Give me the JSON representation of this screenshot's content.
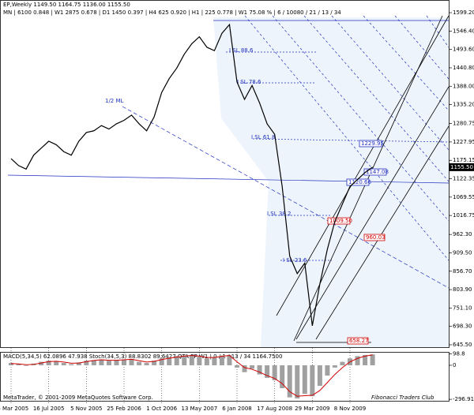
{
  "header": {
    "line1": "EP,Weekly  1149.50 1164.75 1136.00 1155.50",
    "line2": "MN | 6100   0.848 | W1 2875   0.678 | D1 1450   0.397 | H4 625   0.920 | H1 | 225   0.778 | W1   75.08 % | 6 / 10080 / 21 / 13 / 34"
  },
  "footer": {
    "copyright": "MetaTrader, © 2001-2009 MetaQuotes Software Corp.",
    "club": "Fibonacci Traders Club"
  },
  "chart_data": [
    {
      "type": "line",
      "color": "#000000",
      "categories": [
        "26 Mar 2005",
        null,
        null,
        null,
        null,
        "16 Jul 2005",
        null,
        null,
        null,
        null,
        "5 Nov 2005",
        null,
        null,
        null,
        null,
        "25 Feb 2006",
        null,
        null,
        null,
        null,
        "1 Oct 2006",
        null,
        null,
        null,
        null,
        "13 May 2007",
        null,
        null,
        null,
        null,
        "6 Jan 2008",
        null,
        null,
        null,
        null,
        "17 Aug 2008",
        null,
        null,
        null,
        null,
        "29 Mar 2009",
        null,
        null,
        null,
        null,
        "8 Nov 2009",
        null,
        null,
        null
      ],
      "values": [
        1180,
        1160,
        1150,
        1190,
        1210,
        1230,
        1220,
        1200,
        1190,
        1230,
        1255,
        1260,
        1275,
        1265,
        1280,
        1290,
        1305,
        1280,
        1260,
        1300,
        1370,
        1410,
        1440,
        1480,
        1510,
        1530,
        1500,
        1490,
        1540,
        1565,
        1400,
        1350,
        1390,
        1340,
        1280,
        1250,
        1100,
        900,
        850,
        880,
        700,
        820,
        920,
        1000,
        1050,
        1100,
        1120,
        1140,
        1155.5
      ],
      "ylim": [
        638.7,
        1633.3
      ],
      "yticks": [
        {
          "value": 1599.2,
          "label": "1599.20"
        },
        {
          "value": 1546.4,
          "label": "1546.40"
        },
        {
          "value": 1493.6,
          "label": "1493.60"
        },
        {
          "value": 1440.8,
          "label": "1440.80"
        },
        {
          "value": 1388,
          "label": "1388.00"
        },
        {
          "value": 1335.2,
          "label": "1335.20"
        },
        1280.75,
        1227.95,
        1175.15,
        1122.35,
        1069.55,
        1016.75,
        {
          "value": 962.3,
          "label": "962.30"
        },
        {
          "value": 909.5,
          "label": "909.50"
        },
        {
          "value": 856.7,
          "label": "856.70"
        },
        {
          "value": 803.9,
          "label": "803.90"
        },
        {
          "value": 751.1,
          "label": "751.10"
        },
        {
          "value": 698.3,
          "label": "698.30"
        },
        {
          "value": 645.5,
          "label": "645.50"
        }
      ],
      "last_price": {
        "value": 1155.5,
        "label": "1155.50"
      },
      "annotations": [
        "1/2 ML",
        "I SL 88.6",
        "I SL 78.6",
        "I SL 61.8",
        "I SL 38.2",
        "I SL 23.6",
        "1229.95",
        "1147.08",
        "1120.66",
        "1009.50",
        "960.03",
        "658.27"
      ]
    },
    {
      "type": "macd",
      "title": "MACD(5,34,5) 62.0896 47.938   Stoch(34,5,3) 88.8302 89.6427   QTA EP W1 | 0 / 1 / 13 / 34   1164.7500",
      "series": [
        {
          "color": "#a0a0a0",
          "values": [
            20,
            10,
            -5,
            15,
            30,
            40,
            35,
            20,
            10,
            25,
            40,
            45,
            50,
            40,
            45,
            50,
            55,
            30,
            20,
            40,
            60,
            70,
            80,
            85,
            90,
            75,
            60,
            70,
            85,
            90,
            -20,
            -60,
            -30,
            -80,
            -110,
            -130,
            -200,
            -280,
            -290,
            -250,
            -270,
            -180,
            -90,
            -20,
            30,
            60,
            80,
            90,
            95
          ]
        },
        {
          "color": "#d00000",
          "values": [
            15,
            12,
            5,
            8,
            20,
            32,
            35,
            28,
            18,
            20,
            32,
            42,
            48,
            44,
            44,
            48,
            52,
            40,
            28,
            34,
            50,
            62,
            72,
            80,
            86,
            80,
            68,
            68,
            78,
            86,
            30,
            -20,
            -35,
            -60,
            -90,
            -115,
            -160,
            -230,
            -270,
            -265,
            -262,
            -220,
            -150,
            -80,
            -20,
            30,
            60,
            80,
            90
          ]
        }
      ],
      "ylim": [
        -310,
        110
      ],
      "yticks": [
        98.8,
        0,
        -296.914
      ]
    }
  ]
}
